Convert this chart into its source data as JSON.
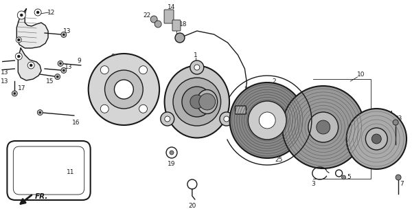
{
  "bg_color": "#ffffff",
  "line_color": "#1a1a1a",
  "fig_width": 6.0,
  "fig_height": 3.2,
  "dpi": 100,
  "label_fontsize": 6.5
}
